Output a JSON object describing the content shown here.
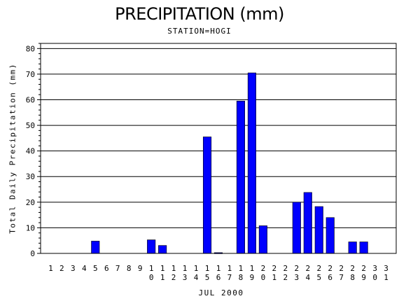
{
  "chart_data": {
    "type": "bar",
    "title": "PRECIPITATION (mm)",
    "subtitle": "STATION=HOGI",
    "xlabel": "JUL 2000",
    "ylabel": "Total Daily Precipitation (mm)",
    "categories": [
      "1",
      "2",
      "3",
      "4",
      "5",
      "6",
      "7",
      "8",
      "9",
      "10",
      "11",
      "12",
      "13",
      "14",
      "15",
      "16",
      "17",
      "18",
      "19",
      "20",
      "21",
      "22",
      "23",
      "24",
      "25",
      "26",
      "27",
      "28",
      "29",
      "30",
      "31"
    ],
    "values": [
      0,
      0,
      0,
      0,
      4.8,
      0,
      0,
      0,
      0,
      5.3,
      3.1,
      0,
      0,
      0,
      45.5,
      0.3,
      0,
      59.5,
      70.5,
      10.8,
      0,
      0,
      20,
      23.8,
      18.3,
      14,
      0,
      4.5,
      4.5,
      0,
      0
    ],
    "ylim": [
      0,
      82
    ],
    "yticks": [
      0,
      10,
      20,
      30,
      40,
      50,
      60,
      70,
      80
    ],
    "grid": true,
    "colors": {
      "bar": "#0000ff",
      "grid": "#000000",
      "axis": "#000000"
    }
  }
}
